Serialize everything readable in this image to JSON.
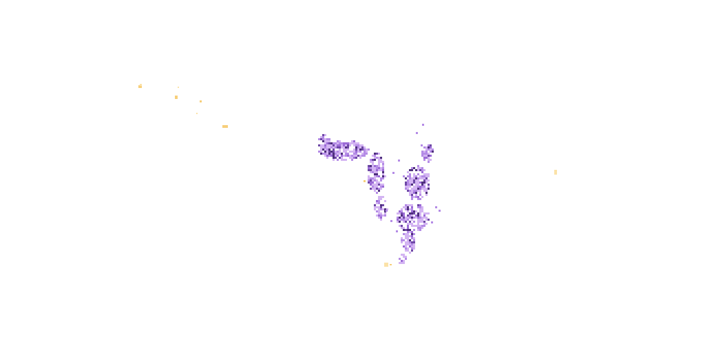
{
  "map": {
    "background": "#ffffff",
    "colors": {
      "purple_light": "#d3b4f2",
      "purple_mid": "#b48be6",
      "purple": "#9b6bd6",
      "purple_dark": "#6e48a6",
      "purple_darkest": "#4e2f7d",
      "yellow": "#f7cf7a",
      "yellow_light": "#fbe2a8"
    },
    "layers": [
      {
        "name": "density-layer",
        "color_ramp": [
          "#d3b4f2",
          "#b48be6",
          "#9b6bd6",
          "#6e48a6",
          "#4e2f7d"
        ]
      },
      {
        "name": "outlier-layer",
        "color_ramp": [
          "#fbe2a8",
          "#f7cf7a"
        ]
      }
    ]
  }
}
